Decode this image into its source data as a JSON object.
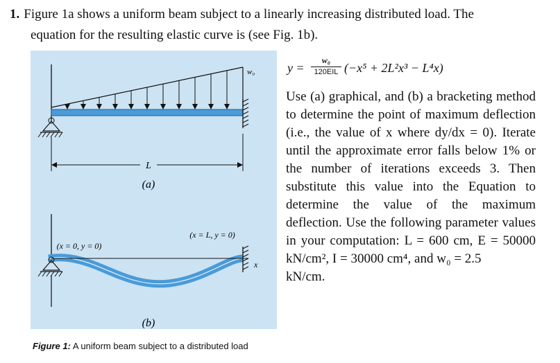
{
  "problem": {
    "number": "1.",
    "intro_line1": "Figure 1a shows a uniform beam subject to a linearly increasing distributed load. The",
    "intro_line2": "equation for the resulting elastic curve is (see Fig. 1b)."
  },
  "equation": {
    "lhs": "y =",
    "numerator": "w₀",
    "denominator": "120EIL",
    "rhs": "(−x⁵ + 2L²x³ − L⁴x)"
  },
  "body": {
    "paragraph": "Use (a) graphical, and (b) a bracketing method to determine the point of maximum deflection (i.e., the value of x where dy/dx = 0). Iterate until the approximate error falls below 1% or the number of iterations exceeds 3. Then substitute this value into the Equation to determine the value of the maximum deflection. Use the following parameter values in your computation: L = 600 cm, E = 50000 kN/cm², I = 30000 cm⁴, and w₀ = 2.5",
    "last_line": "kN/cm."
  },
  "figure": {
    "load_label": "w₀",
    "length_label": "L",
    "part_a_label": "(a)",
    "left_support_label": "(x = 0, y = 0)",
    "right_support_label": "(x = L, y = 0)",
    "x_axis_label": "x",
    "part_b_label": "(b)",
    "panel_color": "#cce3f3",
    "beam_color": "#4a9bd8"
  },
  "caption": {
    "prefix": "Figure 1:",
    "text": "A uniform beam subject to a distributed load"
  }
}
